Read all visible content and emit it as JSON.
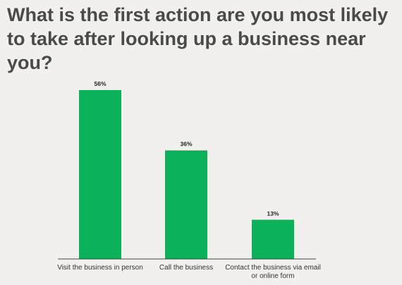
{
  "title": "What is the first action are you most likely to take after looking up a business near you?",
  "colors": {
    "bar": "#0cb15c",
    "axis": "#444444",
    "label": "#222222"
  },
  "chart_data": {
    "type": "bar",
    "title": "",
    "xlabel": "",
    "ylabel": "",
    "categories": [
      "Visit the business in person",
      "Call the business",
      "Contact the business via email or online form"
    ],
    "values": [
      56,
      36,
      13
    ],
    "value_labels": [
      "56%",
      "36%",
      "13%"
    ],
    "ylim": [
      0,
      56
    ],
    "grid": false
  }
}
